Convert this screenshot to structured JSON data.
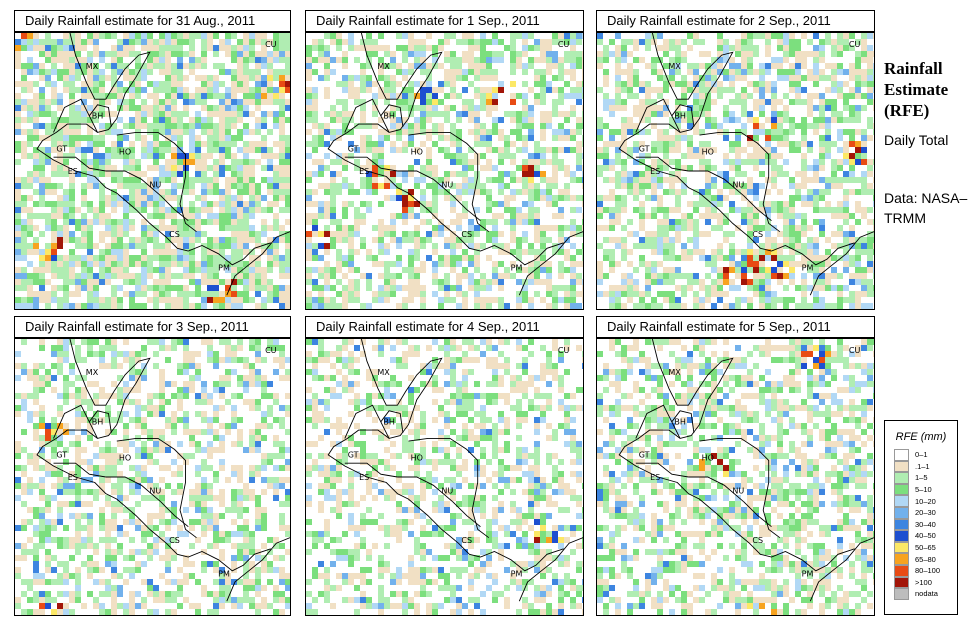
{
  "panels": [
    {
      "title": "Daily Rainfall estimate for  31 Aug., 2011",
      "seed": 11,
      "wet": 0.78,
      "hot": 5
    },
    {
      "title": "Daily Rainfall estimate for  1 Sep., 2011",
      "seed": 23,
      "wet": 0.62,
      "hot": 6
    },
    {
      "title": "Daily Rainfall estimate for  2 Sep., 2011",
      "seed": 37,
      "wet": 0.66,
      "hot": 5
    },
    {
      "title": "Daily Rainfall estimate for  3 Sep., 2011",
      "seed": 41,
      "wet": 0.55,
      "hot": 2
    },
    {
      "title": "Daily Rainfall estimate for  4 Sep., 2011",
      "seed": 53,
      "wet": 0.5,
      "hot": 1
    },
    {
      "title": "Daily Rainfall estimate for  5 Sep., 2011",
      "seed": 67,
      "wet": 0.57,
      "hot": 3
    }
  ],
  "country_labels": [
    "CU",
    "MX",
    "BH",
    "GT",
    "HO",
    "ES",
    "NU",
    "CS",
    "PM"
  ],
  "side": {
    "title": "Rainfall Estimate (RFE)",
    "subtitle": "Daily Total",
    "data_source": "Data: NASA–TRMM"
  },
  "legend": {
    "title": "RFE (mm)",
    "items": [
      {
        "label": "0–1",
        "color": "#ffffff"
      },
      {
        "label": ".1–1",
        "color": "#f1e0c4"
      },
      {
        "label": "1–5",
        "color": "#b0edb2"
      },
      {
        "label": "5–10",
        "color": "#7cdf7e"
      },
      {
        "label": "10–20",
        "color": "#b1d8f5"
      },
      {
        "label": "20–30",
        "color": "#72b1ec"
      },
      {
        "label": "30–40",
        "color": "#3d85e0"
      },
      {
        "label": "40–50",
        "color": "#1d4fd0"
      },
      {
        "label": "50–65",
        "color": "#fce866"
      },
      {
        "label": "65–80",
        "color": "#f7a31f"
      },
      {
        "label": "80–100",
        "color": "#e84b14"
      },
      {
        "label": ">100",
        "color": "#a21508"
      },
      {
        "label": "nodata",
        "color": "#bdbdbd"
      }
    ]
  }
}
